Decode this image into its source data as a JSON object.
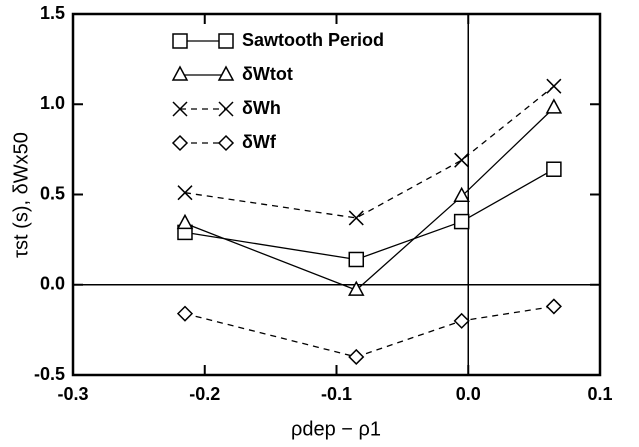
{
  "chart_data": {
    "type": "line",
    "xlabel": "ρdep − ρ1",
    "ylabel": "τst (s), δWx50",
    "x": [
      -0.215,
      -0.085,
      -0.005,
      0.065
    ],
    "series": [
      {
        "name": "Sawtooth Period",
        "color": "#000000",
        "marker": "square",
        "dash": false,
        "values": [
          0.29,
          0.14,
          0.35,
          0.64
        ]
      },
      {
        "name": "δWtot",
        "color": "#000000",
        "marker": "triangle",
        "dash": false,
        "values": [
          0.34,
          -0.03,
          0.49,
          0.98
        ]
      },
      {
        "name": "δWh",
        "color": "#000000",
        "marker": "cross",
        "dash": true,
        "values": [
          0.51,
          0.37,
          0.69,
          1.1
        ]
      },
      {
        "name": "δWf",
        "color": "#000000",
        "marker": "diamond",
        "dash": true,
        "values": [
          -0.16,
          -0.4,
          -0.2,
          -0.12
        ]
      }
    ],
    "xlim": [
      -0.3,
      0.1
    ],
    "xticks": [
      -0.3,
      -0.2,
      -0.1,
      {
        "value": 0,
        "label": "0.0"
      },
      0.1
    ],
    "ylim": [
      -0.5,
      1.5
    ],
    "yticks": [
      -0.5,
      {
        "value": 0,
        "label": "0.0"
      },
      0.5,
      {
        "value": 1,
        "label": "1.0"
      },
      1.5
    ],
    "zero_lines": true,
    "legend": "upper-left"
  }
}
